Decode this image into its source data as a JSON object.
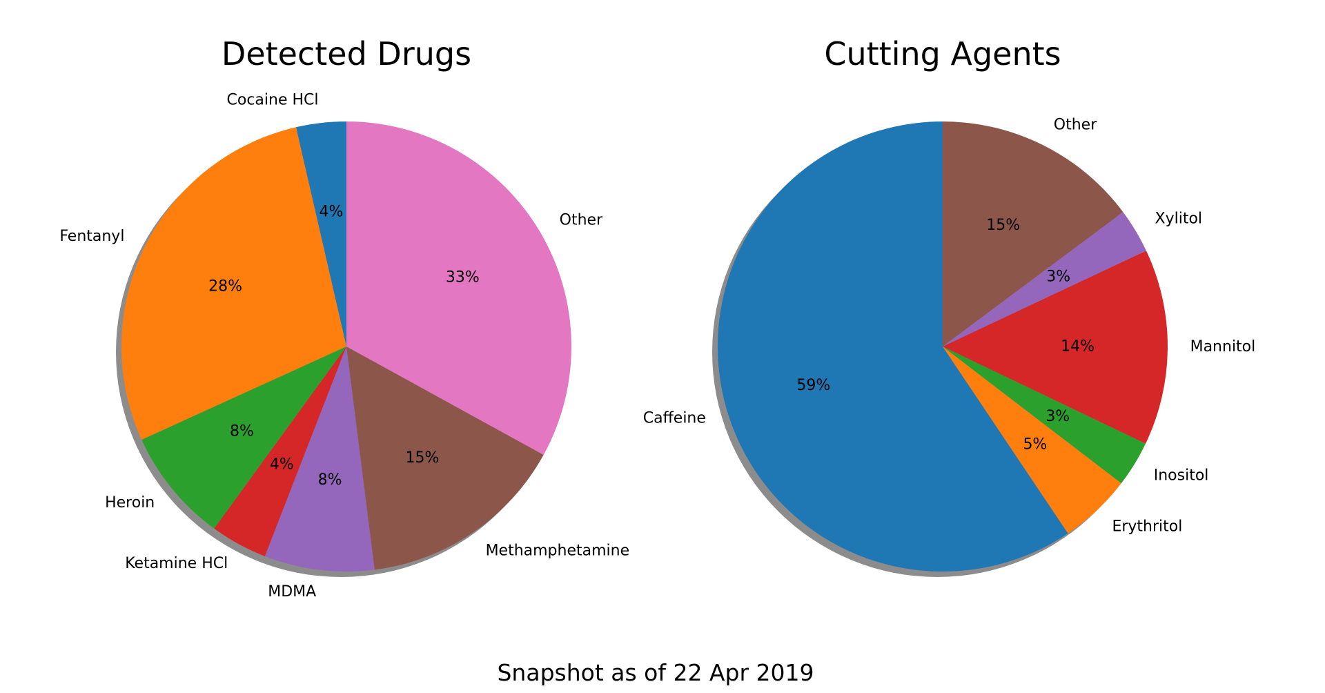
{
  "chart_data": [
    {
      "type": "pie",
      "title": "Detected Drugs",
      "start_angle_deg": 90,
      "direction": "counterclockwise",
      "shadow": true,
      "slices": [
        {
          "label": "Cocaine HCl",
          "value": 3.6,
          "pct_label": "4%",
          "color": "#1f77b4"
        },
        {
          "label": "Fentanyl",
          "value": 28.2,
          "pct_label": "28%",
          "color": "#ff7f0e"
        },
        {
          "label": "Heroin",
          "value": 8.2,
          "pct_label": "8%",
          "color": "#2ca02c"
        },
        {
          "label": "Ketamine HCl",
          "value": 4.1,
          "pct_label": "4%",
          "color": "#d62728"
        },
        {
          "label": "MDMA",
          "value": 7.9,
          "pct_label": "8%",
          "color": "#9467bd"
        },
        {
          "label": "Methamphetamine",
          "value": 15.0,
          "pct_label": "15%",
          "color": "#8c564b"
        },
        {
          "label": "Other",
          "value": 33.0,
          "pct_label": "33%",
          "color": "#e377c2"
        }
      ]
    },
    {
      "type": "pie",
      "title": "Cutting Agents",
      "start_angle_deg": 90,
      "direction": "counterclockwise",
      "shadow": true,
      "slices": [
        {
          "label": "Caffeine",
          "value": 59.4,
          "pct_label": "59%",
          "color": "#1f77b4"
        },
        {
          "label": "Erythritol",
          "value": 5.2,
          "pct_label": "5%",
          "color": "#ff7f0e"
        },
        {
          "label": "Inositol",
          "value": 3.3,
          "pct_label": "3%",
          "color": "#2ca02c"
        },
        {
          "label": "Mannitol",
          "value": 14.1,
          "pct_label": "14%",
          "color": "#d62728"
        },
        {
          "label": "Xylitol",
          "value": 3.2,
          "pct_label": "3%",
          "color": "#9467bd"
        },
        {
          "label": "Other",
          "value": 14.8,
          "pct_label": "15%",
          "color": "#8c564b"
        }
      ]
    }
  ],
  "footer": "Snapshot as of 22 Apr 2019"
}
